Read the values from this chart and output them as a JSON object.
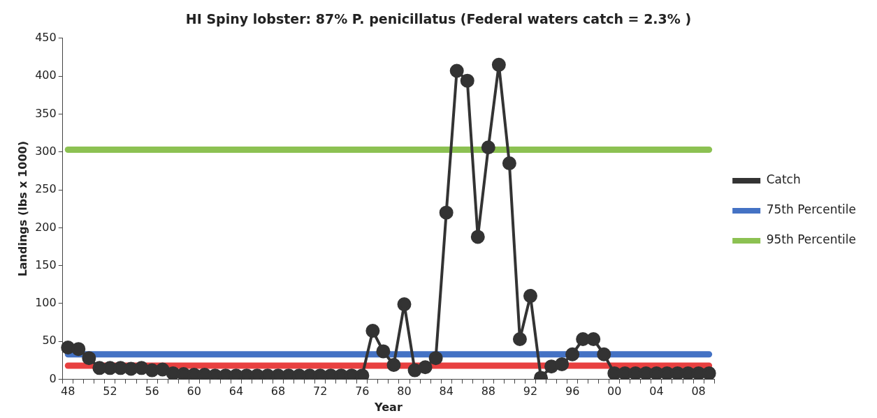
{
  "chart_data": {
    "type": "line",
    "title": "HI Spiny lobster: 87% P. penicillatus (Federal waters catch = 2.3% )",
    "xlabel": "Year",
    "ylabel": "Landings (lbs x 1000)",
    "categories": [
      "48",
      null,
      null,
      null,
      "52",
      null,
      null,
      null,
      "56",
      null,
      null,
      null,
      "60",
      null,
      null,
      null,
      "64",
      null,
      null,
      null,
      "68",
      null,
      null,
      null,
      "72",
      null,
      null,
      null,
      "76",
      null,
      null,
      null,
      "80",
      null,
      null,
      null,
      "84",
      null,
      null,
      null,
      "88",
      null,
      null,
      null,
      "92",
      null,
      null,
      null,
      "96",
      null,
      null,
      null,
      "00",
      null,
      null,
      null,
      "04",
      null,
      null,
      null,
      "08",
      null
    ],
    "series": [
      {
        "name": "Catch",
        "color": "#333333",
        "marker": "circle",
        "values": [
          42,
          40,
          28,
          15,
          15,
          15,
          14,
          15,
          12,
          13,
          8,
          7,
          6,
          6,
          5,
          5,
          5,
          5,
          5,
          5,
          5,
          5,
          5,
          5,
          5,
          5,
          5,
          5,
          5,
          64,
          37,
          19,
          99,
          12,
          16,
          28,
          220,
          407,
          394,
          188,
          306,
          415,
          285,
          53,
          110,
          2,
          17,
          20,
          33,
          53,
          53,
          33,
          8,
          8,
          8,
          8,
          8,
          8,
          8,
          8,
          8,
          8
        ]
      },
      {
        "name": "75th Percentile",
        "color": "#4472c4",
        "marker": "none",
        "values": [
          33,
          33,
          33,
          33,
          33,
          33,
          33,
          33,
          33,
          33,
          33,
          33,
          33,
          33,
          33,
          33,
          33,
          33,
          33,
          33,
          33,
          33,
          33,
          33,
          33,
          33,
          33,
          33,
          33,
          33,
          33,
          33,
          33,
          33,
          33,
          33,
          33,
          33,
          33,
          33,
          33,
          33,
          33,
          33,
          33,
          33,
          33,
          33,
          33,
          33,
          33,
          33,
          33,
          33,
          33,
          33,
          33,
          33,
          33,
          33,
          33,
          33
        ]
      },
      {
        "name": "95th Percentile",
        "color": "#8cc152",
        "marker": "none",
        "values": [
          303,
          303,
          303,
          303,
          303,
          303,
          303,
          303,
          303,
          303,
          303,
          303,
          303,
          303,
          303,
          303,
          303,
          303,
          303,
          303,
          303,
          303,
          303,
          303,
          303,
          303,
          303,
          303,
          303,
          303,
          303,
          303,
          303,
          303,
          303,
          303,
          303,
          303,
          303,
          303,
          303,
          303,
          303,
          303,
          303,
          303,
          303,
          303,
          303,
          303,
          303,
          303,
          303,
          303,
          303,
          303,
          303,
          303,
          303,
          303,
          303,
          303
        ]
      }
    ],
    "ref_lines": [
      {
        "axis": "y",
        "value": 18,
        "color": "#e84040"
      }
    ],
    "ylim": [
      0,
      450
    ],
    "yticks": [
      0,
      50,
      100,
      150,
      200,
      250,
      300,
      350,
      400,
      450
    ],
    "grid": false,
    "legend": "right"
  }
}
